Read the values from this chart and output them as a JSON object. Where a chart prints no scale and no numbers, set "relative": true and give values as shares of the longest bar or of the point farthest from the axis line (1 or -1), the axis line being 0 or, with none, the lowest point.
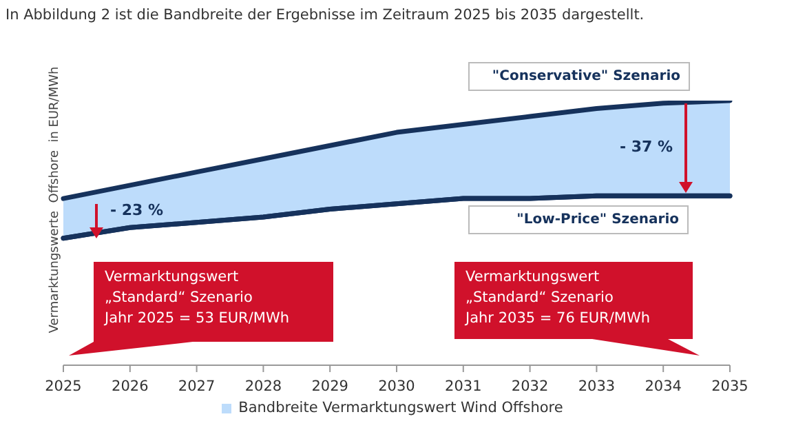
{
  "chart_data": {
    "type": "line",
    "relative": true,
    "title": "In Abbildung 2 ist die Bandbreite der Ergebnisse im Zeitraum 2025 bis 2035 dargestellt.",
    "ylabel": "Vermarktungswerte  Offshore  in EUR/MWh",
    "categories": [
      "2025",
      "2026",
      "2027",
      "2028",
      "2029",
      "2030",
      "2031",
      "2032",
      "2033",
      "2034",
      "2035"
    ],
    "series": [
      {
        "color": "#16325c",
        "values": [
          0.48,
          0.52,
          0.54,
          0.56,
          0.59,
          0.61,
          0.63,
          0.63,
          0.64,
          0.64,
          0.64
        ]
      },
      {
        "type": "area",
        "name": "Bandbreite Vermarktungswert Wind Offshore",
        "color": "#bddcfb",
        "values": [
          0.63,
          0.68,
          0.73,
          0.78,
          0.83,
          0.88,
          0.91,
          0.94,
          0.97,
          0.99,
          1
        ]
      }
    ],
    "annotations": [
      "\"Conservative\" Szenario",
      "\"Low-Price\" Szenario",
      "- 23 %",
      "- 37 %",
      "Vermarktungswert\n„Standard“ Szenario\nJahr 2025 = 53 EUR/MWh",
      "Vermarktungswert\n„Standard“ Szenario\nJahr 2035 = 76 EUR/MWh"
    ],
    "legend": "bottom",
    "grid": false,
    "marker": "none",
    "line_style": "solid"
  }
}
